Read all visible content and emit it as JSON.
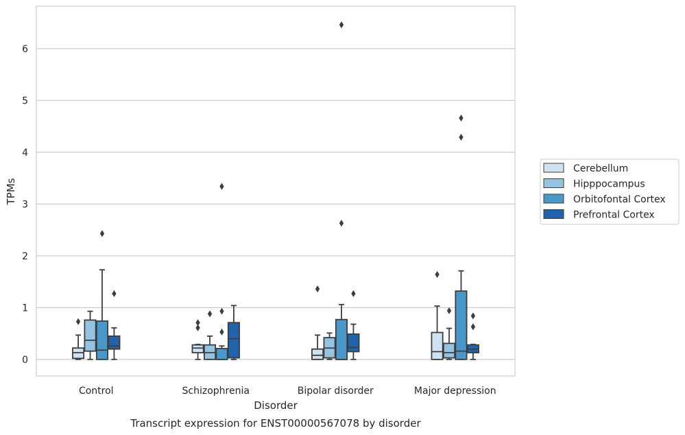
{
  "chart_data": {
    "type": "box",
    "title": "Transcript expression for ENST00000567078 by disorder",
    "xlabel": "Disorder",
    "ylabel": "TPMs",
    "ylim": [
      -0.32,
      6.82
    ],
    "yticks": [
      0,
      1,
      2,
      3,
      4,
      5,
      6
    ],
    "grid": "horizontal",
    "legend_position": "right",
    "categories": [
      "Control",
      "Schizophrenia",
      "Bipolar disorder",
      "Major depression"
    ],
    "series": [
      {
        "name": "Cerebellum",
        "color": "#d0e1f2",
        "boxes": [
          {
            "whislo": 0.0,
            "q1": 0.02,
            "med": 0.13,
            "q3": 0.22,
            "whishi": 0.47,
            "fliers": [
              0.73
            ]
          },
          {
            "whislo": 0.0,
            "q1": 0.13,
            "med": 0.22,
            "q3": 0.28,
            "whishi": 0.29,
            "fliers": [
              0.61,
              0.71
            ]
          },
          {
            "whislo": 0.0,
            "q1": 0.0,
            "med": 0.08,
            "q3": 0.2,
            "whishi": 0.47,
            "fliers": [
              1.36
            ]
          },
          {
            "whislo": 0.0,
            "q1": 0.0,
            "med": 0.15,
            "q3": 0.52,
            "whishi": 1.03,
            "fliers": [
              1.64
            ]
          }
        ]
      },
      {
        "name": "Hipppocampus",
        "color": "#94c4df",
        "boxes": [
          {
            "whislo": 0.0,
            "q1": 0.16,
            "med": 0.37,
            "q3": 0.76,
            "whishi": 0.93,
            "fliers": []
          },
          {
            "whislo": 0.0,
            "q1": 0.0,
            "med": 0.13,
            "q3": 0.28,
            "whishi": 0.45,
            "fliers": [
              0.88
            ]
          },
          {
            "whislo": 0.0,
            "q1": 0.03,
            "med": 0.22,
            "q3": 0.42,
            "whishi": 0.51,
            "fliers": []
          },
          {
            "whislo": 0.0,
            "q1": 0.03,
            "med": 0.13,
            "q3": 0.31,
            "whishi": 0.6,
            "fliers": [
              0.94
            ]
          }
        ]
      },
      {
        "name": "Orbitofontal Cortex",
        "color": "#4a98c9",
        "boxes": [
          {
            "whislo": 0.0,
            "q1": 0.0,
            "med": 0.18,
            "q3": 0.74,
            "whishi": 1.73,
            "fliers": [
              2.43
            ]
          },
          {
            "whislo": 0.0,
            "q1": 0.0,
            "med": 0.0,
            "q3": 0.21,
            "whishi": 0.26,
            "fliers": [
              0.53,
              0.93,
              3.34
            ]
          },
          {
            "whislo": 0.0,
            "q1": 0.0,
            "med": 0.0,
            "q3": 0.77,
            "whishi": 1.06,
            "fliers": [
              2.63,
              6.46
            ]
          },
          {
            "whislo": 0.0,
            "q1": 0.0,
            "med": 0.16,
            "q3": 1.32,
            "whishi": 1.71,
            "fliers": [
              4.29,
              4.66
            ]
          }
        ]
      },
      {
        "name": "Prefrontal Cortex",
        "color": "#2264ab",
        "boxes": [
          {
            "whislo": 0.0,
            "q1": 0.2,
            "med": 0.26,
            "q3": 0.45,
            "whishi": 0.61,
            "fliers": [
              1.27
            ]
          },
          {
            "whislo": 0.0,
            "q1": 0.03,
            "med": 0.4,
            "q3": 0.71,
            "whishi": 1.04,
            "fliers": []
          },
          {
            "whislo": 0.0,
            "q1": 0.15,
            "med": 0.23,
            "q3": 0.49,
            "whishi": 0.68,
            "fliers": [
              1.27
            ]
          },
          {
            "whislo": 0.0,
            "q1": 0.13,
            "med": 0.2,
            "q3": 0.28,
            "whishi": 0.29,
            "fliers": [
              0.63,
              0.84
            ]
          }
        ]
      }
    ]
  }
}
